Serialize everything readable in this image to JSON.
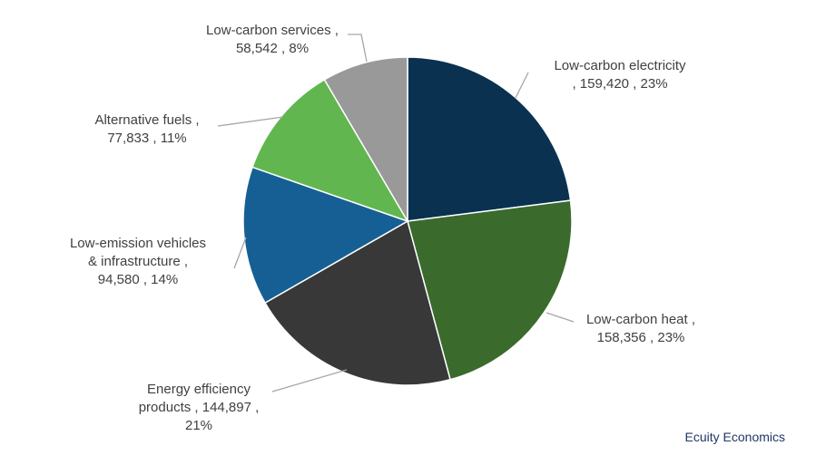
{
  "chart_data": {
    "type": "pie",
    "title": "",
    "categories": [
      "Low-carbon electricity",
      "Low-carbon heat",
      "Energy efficiency products",
      "Low-emission vehicles & infrastructure",
      "Alternative fuels",
      "Low-carbon services"
    ],
    "values": [
      159420,
      158356,
      144897,
      94580,
      77833,
      58542
    ],
    "percent_labels": [
      "23%",
      "23%",
      "21%",
      "14%",
      "11%",
      "8%"
    ],
    "value_labels": [
      "159,420",
      "158,356",
      "144,897",
      "94,580",
      "77,833",
      "58,542"
    ],
    "colors": [
      "#0b3150",
      "#3a6b2d",
      "#383838",
      "#165f94",
      "#62b64f",
      "#999999"
    ],
    "data_labels": [
      [
        "Low-carbon electricity",
        ", 159,420 , 23%"
      ],
      [
        "Low-carbon heat ,",
        "158,356 , 23%"
      ],
      [
        "Energy efficiency",
        "products , 144,897 ,",
        "21%"
      ],
      [
        "Low-emission vehicles",
        "& infrastructure ,",
        "94,580 , 14%"
      ],
      [
        "Alternative fuels ,",
        "77,833 , 11%"
      ],
      [
        "Low-carbon services ,",
        "58,542 , 8%"
      ]
    ],
    "start_angle": "12 o'clock",
    "direction": "clockwise",
    "legend": "none"
  },
  "source_note": "Ecuity Economics"
}
